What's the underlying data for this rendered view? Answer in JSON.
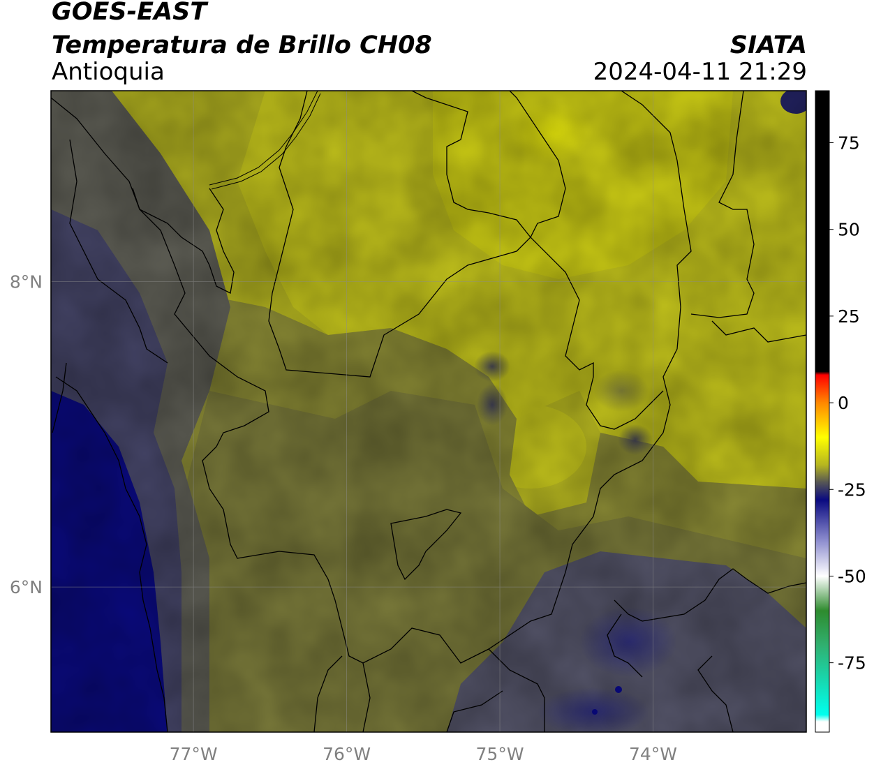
{
  "header": {
    "satellite": "GOES-EAST",
    "product": "Temperatura de Brillo CH08",
    "region": "Antioquia",
    "organization": "SIATA",
    "timestamp": "2024-04-11 21:29"
  },
  "map": {
    "lon_range": [
      -77.93,
      -73.0
    ],
    "lat_range": [
      5.05,
      9.25
    ],
    "lon_ticks": [
      {
        "value": -77,
        "label": "77°W"
      },
      {
        "value": -76,
        "label": "76°W"
      },
      {
        "value": -75,
        "label": "75°W"
      },
      {
        "value": -74,
        "label": "74°W"
      }
    ],
    "lat_ticks": [
      {
        "value": 8,
        "label": "8°N"
      },
      {
        "value": 6,
        "label": "6°N"
      }
    ],
    "grid": true
  },
  "colorbar": {
    "range": [
      -95,
      90
    ],
    "ticks": [
      {
        "value": 75,
        "label": "75"
      },
      {
        "value": 50,
        "label": "50"
      },
      {
        "value": 25,
        "label": "25"
      },
      {
        "value": 0,
        "label": "0"
      },
      {
        "value": -25,
        "label": "-25"
      },
      {
        "value": -50,
        "label": "-50"
      },
      {
        "value": -75,
        "label": "-75"
      }
    ],
    "stops": [
      {
        "value": 90,
        "color": "#000000"
      },
      {
        "value": 9,
        "color": "#000000"
      },
      {
        "value": 8,
        "color": "#ff0000"
      },
      {
        "value": 0,
        "color": "#ff8800"
      },
      {
        "value": -10,
        "color": "#ffff00"
      },
      {
        "value": -18,
        "color": "#b5b520"
      },
      {
        "value": -23,
        "color": "#555555"
      },
      {
        "value": -28,
        "color": "#0a0a80"
      },
      {
        "value": -40,
        "color": "#9090d0"
      },
      {
        "value": -50,
        "color": "#ffffff"
      },
      {
        "value": -60,
        "color": "#2e8b2e"
      },
      {
        "value": -70,
        "color": "#30b070"
      },
      {
        "value": -90,
        "color": "#00ffee"
      },
      {
        "value": -92,
        "color": "#ffffff"
      }
    ]
  }
}
